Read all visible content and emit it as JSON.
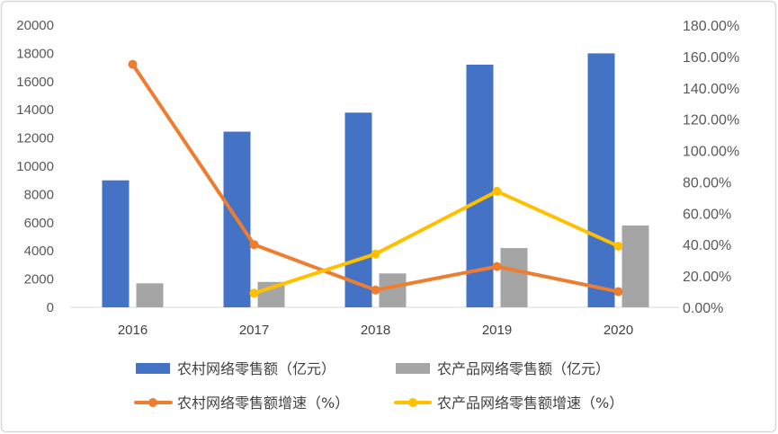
{
  "chart_data": {
    "type": "bar",
    "title": "",
    "xlabel": "",
    "ylabel": "",
    "categories": [
      "2016",
      "2017",
      "2018",
      "2019",
      "2020"
    ],
    "series": [
      {
        "name": "农村网络零售额（亿元）",
        "type": "bar",
        "color": "#4472C4",
        "values": [
          9000,
          12450,
          13800,
          17200,
          18000
        ]
      },
      {
        "name": "农产品网络零售额（亿元）",
        "type": "bar",
        "color": "#A5A5A5",
        "values": [
          1700,
          1800,
          2400,
          4200,
          5800
        ]
      },
      {
        "name": "农村网络零售额增速（%）",
        "type": "line",
        "color": "#ED7D31",
        "values": [
          155,
          40,
          11,
          26,
          10
        ]
      },
      {
        "name": "农产品网络零售额增速（%）",
        "type": "line",
        "color": "#FFC000",
        "values": [
          null,
          9,
          34,
          74,
          39
        ]
      }
    ],
    "y_left": {
      "range": [
        0,
        20000
      ],
      "series": [
        0,
        1
      ],
      "ticks": [
        "0",
        "2000",
        "4000",
        "6000",
        "8000",
        "10000",
        "12000",
        "14000",
        "16000",
        "18000",
        "20000"
      ]
    },
    "y_right": {
      "range": [
        0,
        180
      ],
      "series": [
        2,
        3
      ],
      "ticks": [
        "0.00%",
        "20.00%",
        "40.00%",
        "60.00%",
        "80.00%",
        "100.00%",
        "120.00%",
        "140.00%",
        "160.00%",
        "180.00%"
      ]
    },
    "grid": false,
    "legend": "bottom"
  }
}
